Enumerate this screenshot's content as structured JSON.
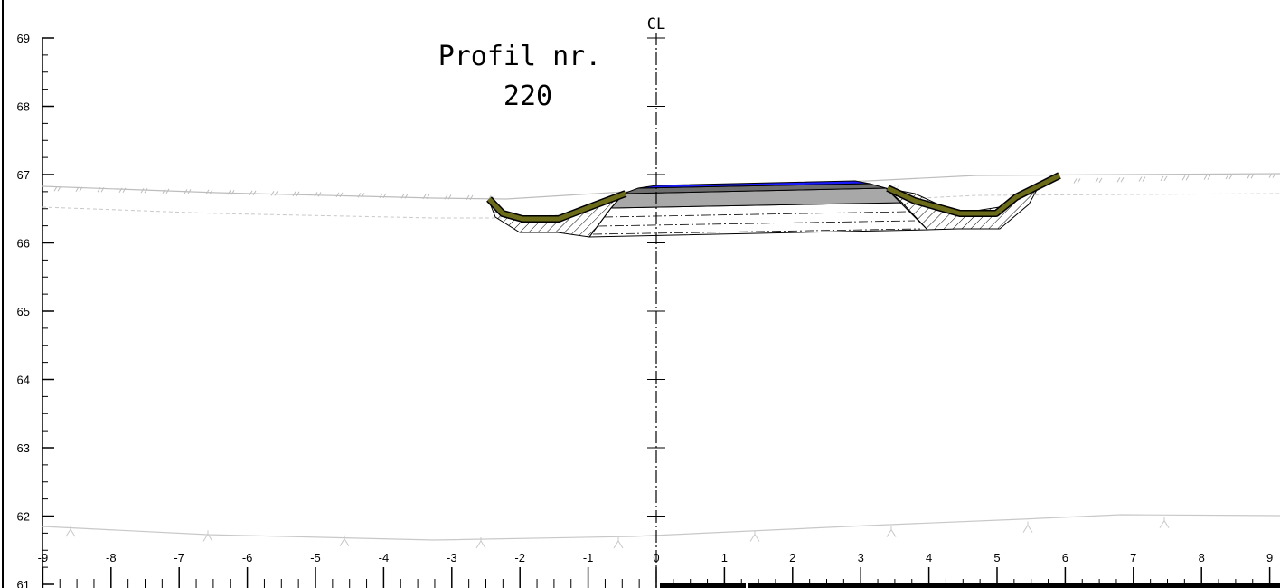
{
  "drawing": {
    "title_line1": "Profil nr.",
    "title_line2": "220",
    "centerline_label": "CL"
  },
  "chart_data": {
    "type": "diagram",
    "x_tick_labels": [
      "-9",
      "-8",
      "-7",
      "-6",
      "-5",
      "-4",
      "-3",
      "-2",
      "-1",
      "0",
      "1",
      "2",
      "3",
      "4",
      "5",
      "6",
      "7",
      "8",
      "9"
    ],
    "y_tick_labels": [
      "69",
      "68",
      "67",
      "66",
      "65",
      "64",
      "63",
      "62",
      "61"
    ],
    "xlim": [
      -9,
      9
    ],
    "ylim": [
      61,
      69
    ],
    "colors": {
      "asphalt": "#1a1aff",
      "ditch_lining": "#6b6b1a",
      "base_layer": "#a8a8a8",
      "terrain_line": "#c8c8c8"
    }
  }
}
